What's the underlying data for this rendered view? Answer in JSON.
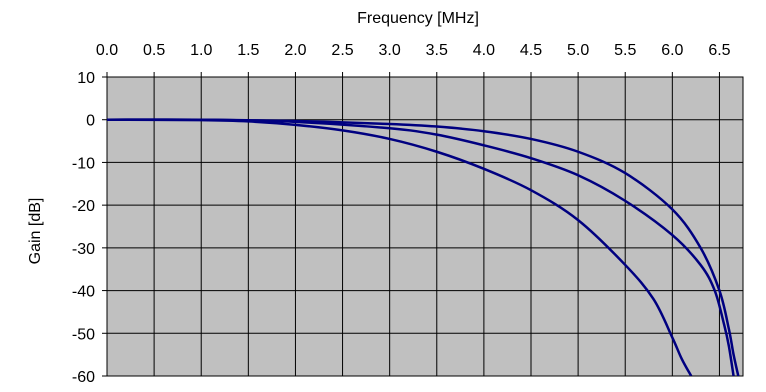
{
  "chart_data": {
    "type": "line",
    "title": "",
    "xlabel": "Frequency [MHz]",
    "ylabel": "Gain [dB]",
    "xlim": [
      0,
      6.75
    ],
    "ylim": [
      -60,
      10
    ],
    "x_axis_position": "top",
    "x_ticks": [
      "0.0",
      "0.5",
      "1.0",
      "1.5",
      "2.0",
      "2.5",
      "3.0",
      "3.5",
      "4.0",
      "4.5",
      "5.0",
      "5.5",
      "6.0",
      "6.5"
    ],
    "y_ticks": [
      "10",
      "0",
      "-10",
      "-20",
      "-30",
      "-40",
      "-50",
      "-60"
    ],
    "grid": true,
    "legend": "none",
    "colors": {
      "plot_background": "#c0c0c0",
      "line": "#000080",
      "grid": "#000000"
    },
    "series": [
      {
        "x": [
          0,
          1,
          2,
          3,
          3.5,
          4,
          4.5,
          5,
          5.5,
          6,
          6.3,
          6.5,
          6.6,
          6.65,
          6.7
        ],
        "y": [
          0,
          0,
          -0.3,
          -1,
          -1.6,
          -2.7,
          -4.5,
          -7.5,
          -12.5,
          -21,
          -30,
          -40,
          -49,
          -55,
          -60
        ]
      },
      {
        "x": [
          0,
          1,
          2,
          3,
          3.5,
          4,
          4.5,
          5,
          5.5,
          6,
          6.3,
          6.45,
          6.55,
          6.6,
          6.65
        ],
        "y": [
          0,
          0,
          -0.5,
          -2,
          -3.5,
          -6,
          -9,
          -13,
          -19,
          -27,
          -34,
          -40,
          -48,
          -53,
          -60
        ]
      },
      {
        "x": [
          0,
          1,
          1.5,
          2,
          2.5,
          3,
          3.5,
          4,
          4.5,
          5,
          5.5,
          5.8,
          6,
          6.1,
          6.2
        ],
        "y": [
          0,
          -0.1,
          -0.4,
          -1.2,
          -2.5,
          -4.5,
          -7.5,
          -11.5,
          -16.5,
          -23.5,
          -34,
          -42,
          -51,
          -56,
          -60
        ]
      }
    ]
  }
}
